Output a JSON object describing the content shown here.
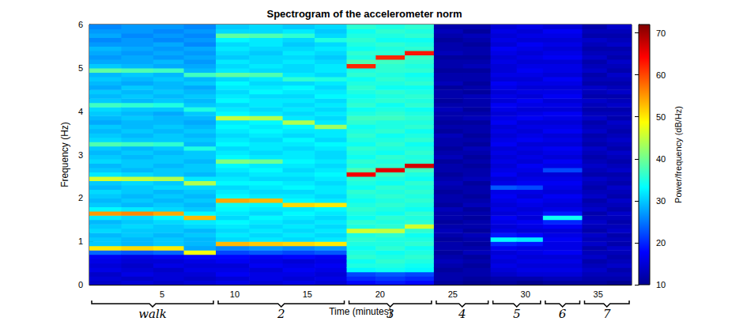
{
  "chart_data": {
    "type": "heatmap",
    "title": "Spectrogram of the accelerometer norm",
    "x_label": "Time (minutes)",
    "y_label": "Frequency (Hz)",
    "xlim": [
      0,
      37.3
    ],
    "xticks": [
      5,
      10,
      15,
      20,
      25,
      30,
      35
    ],
    "ylim": [
      0,
      6
    ],
    "yticks": [
      0,
      1,
      2,
      3,
      4,
      5,
      6
    ],
    "grid": false,
    "time_edges": [
      0,
      2.2,
      4.4,
      6.5,
      8.7,
      11,
      13.3,
      15.5,
      17.7,
      19.7,
      21.7,
      23.7,
      25.7,
      27.6,
      29.4,
      31.2,
      33.9,
      35.6,
      37.3
    ],
    "freq_edges": [
      0,
      0.1,
      0.2,
      0.3,
      0.4,
      0.5,
      0.6,
      0.7,
      0.8,
      0.9,
      1.0,
      1.1,
      1.2,
      1.3,
      1.4,
      1.5,
      1.6,
      1.7,
      1.8,
      1.9,
      2.0,
      2.1,
      2.2,
      2.3,
      2.4,
      2.5,
      2.6,
      2.7,
      2.8,
      2.9,
      3.0,
      3.1,
      3.2,
      3.3,
      3.4,
      3.5,
      3.6,
      3.7,
      3.8,
      3.9,
      4.0,
      4.1,
      4.2,
      4.3,
      4.4,
      4.5,
      4.6,
      4.7,
      4.8,
      4.9,
      5.0,
      5.1,
      5.2,
      5.3,
      5.4,
      5.5,
      5.6,
      5.7,
      5.8,
      5.9,
      6.0
    ],
    "power": [
      [
        14,
        15,
        14,
        16,
        15,
        16,
        17,
        24,
        50,
        30,
        30,
        29,
        31,
        30,
        29,
        32,
        55,
        33,
        30,
        29,
        30,
        31,
        29,
        30,
        46,
        32,
        30,
        29,
        31,
        30,
        29,
        30,
        38,
        31,
        30,
        29,
        30,
        28,
        29,
        30,
        31,
        37,
        30,
        29,
        30,
        28,
        29,
        30,
        29,
        39,
        30,
        28,
        27,
        28,
        29,
        27,
        26,
        28,
        27,
        26
      ],
      [
        15,
        14,
        16,
        15,
        14,
        15,
        16,
        23,
        51,
        29,
        29,
        30,
        30,
        31,
        30,
        31,
        56,
        32,
        29,
        30,
        29,
        30,
        30,
        31,
        45,
        31,
        29,
        30,
        30,
        29,
        30,
        29,
        37,
        30,
        29,
        30,
        29,
        29,
        30,
        29,
        30,
        36,
        29,
        30,
        29,
        30,
        28,
        29,
        30,
        38,
        29,
        28,
        28,
        27,
        28,
        27,
        27,
        26,
        27,
        27
      ],
      [
        14,
        15,
        15,
        14,
        16,
        15,
        17,
        24,
        50,
        30,
        30,
        29,
        30,
        30,
        31,
        33,
        54,
        31,
        30,
        29,
        30,
        29,
        31,
        30,
        44,
        30,
        30,
        29,
        30,
        30,
        29,
        30,
        36,
        30,
        30,
        29,
        30,
        29,
        29,
        28,
        30,
        35,
        30,
        29,
        30,
        29,
        29,
        30,
        29,
        37,
        28,
        29,
        27,
        28,
        27,
        28,
        26,
        27,
        26,
        27
      ],
      [
        15,
        14,
        15,
        16,
        15,
        16,
        18,
        48,
        28,
        29,
        29,
        30,
        29,
        31,
        32,
        53,
        33,
        30,
        29,
        30,
        29,
        30,
        31,
        44,
        32,
        29,
        30,
        30,
        29,
        30,
        30,
        35,
        29,
        30,
        29,
        30,
        29,
        28,
        29,
        30,
        35,
        30,
        29,
        30,
        29,
        28,
        30,
        29,
        37,
        29,
        28,
        27,
        28,
        27,
        28,
        26,
        27,
        26,
        27,
        26
      ],
      [
        16,
        15,
        17,
        16,
        15,
        17,
        18,
        22,
        26,
        53,
        31,
        32,
        31,
        32,
        33,
        31,
        32,
        33,
        34,
        54,
        33,
        32,
        31,
        33,
        32,
        31,
        32,
        33,
        41,
        33,
        32,
        31,
        33,
        32,
        31,
        32,
        33,
        32,
        45,
        33,
        32,
        31,
        33,
        32,
        31,
        32,
        33,
        31,
        39,
        32,
        31,
        32,
        30,
        31,
        32,
        31,
        33,
        39,
        31,
        30
      ],
      [
        15,
        16,
        16,
        15,
        17,
        16,
        17,
        23,
        27,
        52,
        32,
        31,
        32,
        31,
        32,
        33,
        31,
        32,
        33,
        53,
        32,
        31,
        32,
        33,
        31,
        32,
        33,
        32,
        40,
        32,
        31,
        32,
        32,
        31,
        32,
        33,
        32,
        33,
        44,
        32,
        31,
        32,
        32,
        31,
        33,
        32,
        31,
        32,
        38,
        31,
        32,
        31,
        31,
        30,
        31,
        32,
        32,
        38,
        31,
        31
      ],
      [
        16,
        15,
        16,
        17,
        16,
        15,
        18,
        22,
        26,
        51,
        31,
        32,
        31,
        32,
        31,
        32,
        33,
        32,
        51,
        33,
        32,
        31,
        33,
        32,
        31,
        32,
        31,
        32,
        33,
        32,
        32,
        31,
        32,
        33,
        31,
        32,
        33,
        44,
        32,
        31,
        32,
        31,
        32,
        31,
        32,
        33,
        31,
        36,
        32,
        31,
        31,
        32,
        31,
        32,
        31,
        30,
        31,
        36,
        32,
        30
      ],
      [
        15,
        16,
        15,
        16,
        17,
        16,
        17,
        23,
        27,
        50,
        32,
        31,
        32,
        31,
        32,
        31,
        32,
        33,
        50,
        32,
        31,
        32,
        32,
        31,
        32,
        33,
        32,
        31,
        32,
        31,
        31,
        32,
        33,
        31,
        32,
        32,
        43,
        32,
        31,
        32,
        31,
        32,
        31,
        33,
        32,
        31,
        32,
        35,
        31,
        32,
        32,
        31,
        30,
        31,
        32,
        31,
        35,
        31,
        30,
        31
      ],
      [
        18,
        20,
        22,
        33,
        35,
        34,
        36,
        35,
        34,
        35,
        36,
        35,
        46,
        35,
        36,
        34,
        35,
        36,
        35,
        34,
        35,
        36,
        34,
        35,
        36,
        65,
        38,
        35,
        36,
        34,
        35,
        36,
        34,
        35,
        36,
        35,
        34,
        36,
        37,
        35,
        34,
        36,
        35,
        34,
        35,
        36,
        35,
        34,
        36,
        35,
        62,
        38,
        35,
        36,
        34,
        35,
        36,
        35,
        34,
        36
      ],
      [
        19,
        21,
        23,
        34,
        35,
        36,
        35,
        34,
        36,
        35,
        35,
        36,
        45,
        36,
        35,
        36,
        34,
        35,
        36,
        35,
        36,
        35,
        36,
        34,
        35,
        37,
        66,
        36,
        35,
        36,
        34,
        35,
        36,
        35,
        34,
        36,
        35,
        35,
        37,
        36,
        35,
        34,
        36,
        35,
        36,
        34,
        35,
        36,
        35,
        36,
        36,
        37,
        62,
        36,
        35,
        36,
        34,
        35,
        36,
        35
      ],
      [
        18,
        20,
        22,
        33,
        34,
        35,
        36,
        35,
        34,
        36,
        35,
        34,
        36,
        46,
        36,
        35,
        36,
        34,
        35,
        36,
        35,
        36,
        35,
        36,
        34,
        35,
        37,
        67,
        36,
        35,
        36,
        35,
        34,
        36,
        35,
        34,
        36,
        35,
        36,
        35,
        34,
        36,
        35,
        36,
        35,
        34,
        36,
        35,
        34,
        36,
        35,
        36,
        37,
        63,
        36,
        35,
        34,
        36,
        35,
        36
      ],
      [
        11,
        12,
        12,
        11,
        12,
        13,
        12,
        11,
        12,
        12,
        11,
        12,
        13,
        12,
        11,
        12,
        12,
        13,
        11,
        12,
        12,
        11,
        12,
        13,
        12,
        11,
        12,
        12,
        11,
        13,
        12,
        11,
        12,
        12,
        13,
        11,
        12,
        11,
        12,
        12,
        13,
        12,
        11,
        12,
        12,
        11,
        13,
        12,
        12,
        11,
        12,
        12,
        11,
        13,
        12,
        12,
        11,
        12,
        13,
        12
      ],
      [
        10,
        11,
        12,
        12,
        11,
        12,
        11,
        13,
        12,
        11,
        12,
        13,
        11,
        12,
        12,
        11,
        12,
        11,
        13,
        12,
        11,
        12,
        12,
        11,
        13,
        12,
        12,
        11,
        12,
        11,
        12,
        13,
        11,
        12,
        11,
        12,
        12,
        11,
        13,
        12,
        11,
        12,
        12,
        13,
        11,
        12,
        11,
        12,
        12,
        11,
        13,
        12,
        11,
        12,
        12,
        11,
        12,
        13,
        11,
        12
      ],
      [
        11,
        12,
        14,
        15,
        16,
        15,
        16,
        15,
        17,
        20,
        33,
        19,
        16,
        15,
        16,
        17,
        15,
        16,
        15,
        16,
        17,
        16,
        23,
        16,
        15,
        17,
        16,
        15,
        16,
        15,
        16,
        15,
        17,
        16,
        15,
        16,
        15,
        17,
        16,
        15,
        16,
        17,
        15,
        16,
        15,
        16,
        17,
        15,
        16,
        15,
        15,
        16,
        15,
        16,
        17,
        15,
        16,
        15,
        16,
        15
      ],
      [
        10,
        12,
        15,
        16,
        15,
        16,
        15,
        16,
        16,
        19,
        32,
        18,
        15,
        16,
        17,
        15,
        16,
        15,
        16,
        17,
        15,
        16,
        22,
        17,
        16,
        15,
        16,
        17,
        15,
        16,
        15,
        16,
        15,
        17,
        16,
        15,
        16,
        15,
        17,
        16,
        15,
        16,
        17,
        15,
        16,
        15,
        16,
        15,
        16,
        17,
        16,
        15,
        16,
        15,
        16,
        17,
        15,
        16,
        15,
        16
      ],
      [
        11,
        13,
        15,
        16,
        15,
        16,
        15,
        17,
        16,
        16,
        17,
        16,
        15,
        17,
        20,
        34,
        19,
        16,
        15,
        16,
        17,
        15,
        16,
        17,
        16,
        15,
        22,
        16,
        17,
        15,
        16,
        17,
        15,
        16,
        15,
        17,
        16,
        15,
        16,
        17,
        15,
        16,
        15,
        17,
        16,
        15,
        16,
        17,
        15,
        16,
        16,
        15,
        17,
        16,
        15,
        16,
        15,
        16,
        17,
        15
      ],
      [
        11,
        12,
        13,
        14,
        13,
        12,
        14,
        13,
        12,
        14,
        13,
        14,
        12,
        13,
        14,
        13,
        12,
        14,
        13,
        12,
        14,
        13,
        12,
        13,
        14,
        12,
        13,
        14,
        13,
        12,
        13,
        14,
        12,
        13,
        12,
        14,
        13,
        12,
        14,
        13,
        12,
        13,
        14,
        12,
        13,
        14,
        12,
        13,
        12,
        14,
        13,
        12,
        14,
        13,
        12,
        13,
        14,
        12,
        13,
        12
      ],
      [
        10,
        12,
        13,
        12,
        14,
        13,
        12,
        13,
        14,
        12,
        13,
        12,
        14,
        13,
        12,
        13,
        14,
        12,
        13,
        14,
        12,
        13,
        14,
        12,
        13,
        12,
        14,
        13,
        12,
        13,
        14,
        12,
        13,
        14,
        13,
        12,
        13,
        14,
        12,
        13,
        12,
        14,
        13,
        12,
        14,
        13,
        12,
        13,
        14,
        12,
        13,
        14,
        12,
        13,
        12,
        14,
        13,
        12,
        13,
        14
      ]
    ],
    "colorbar": {
      "label": "Power/frequency (dB/Hz)",
      "range": [
        10,
        72
      ],
      "ticks": [
        10,
        20,
        30,
        40,
        50,
        60,
        70
      ]
    },
    "annotations": [
      {
        "text": "walk",
        "span": [
          0,
          8.7
        ]
      },
      {
        "text": "2",
        "span": [
          8.7,
          17.7
        ]
      },
      {
        "text": "3",
        "span": [
          17.7,
          23.7
        ]
      },
      {
        "text": "4",
        "span": [
          23.7,
          27.6
        ]
      },
      {
        "text": "5",
        "span": [
          27.6,
          31.2
        ]
      },
      {
        "text": "6",
        "span": [
          31.2,
          33.9
        ]
      },
      {
        "text": "7",
        "span": [
          33.9,
          37.3
        ]
      }
    ]
  }
}
